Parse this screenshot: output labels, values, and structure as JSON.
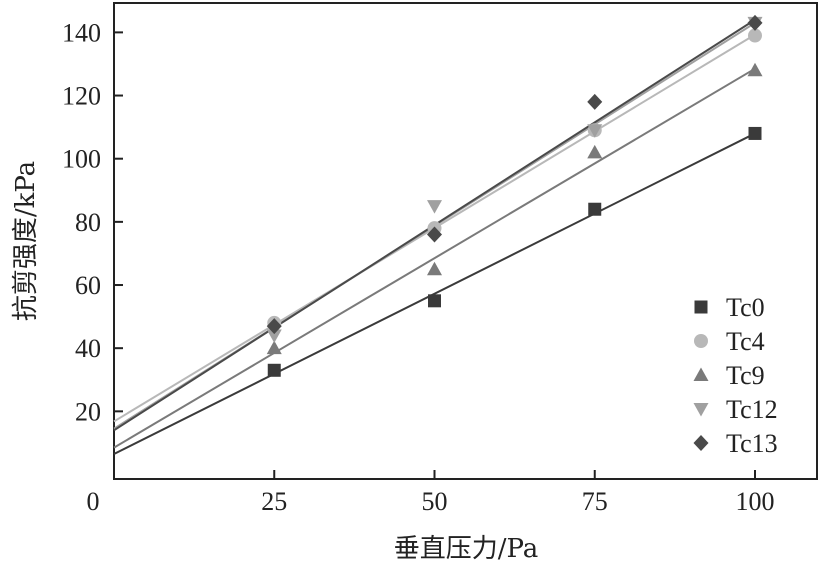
{
  "chart_data": {
    "type": "scatter",
    "xlabel": "垂直压力/Pa",
    "ylabel": "抗剪强度/kPa",
    "xlim": [
      0,
      108
    ],
    "ylim": [
      0,
      147
    ],
    "xticks": [
      0,
      25,
      50,
      75,
      100
    ],
    "yticks": [
      20,
      40,
      60,
      80,
      100,
      120,
      140
    ],
    "grid": false,
    "legend_position": "bottom-right",
    "series": [
      {
        "name": "Tc0",
        "marker": "square",
        "color": "#3a3a3a",
        "x": [
          25,
          50,
          75,
          100
        ],
        "y": [
          33,
          55,
          84,
          108
        ],
        "fit": {
          "intercept": 6.5,
          "slope": 1.015
        }
      },
      {
        "name": "Tc4",
        "marker": "circle",
        "color": "#b8b8b8",
        "x": [
          25,
          50,
          75,
          100
        ],
        "y": [
          48,
          78,
          109,
          139
        ],
        "fit": {
          "intercept": 16.8,
          "slope": 1.225
        }
      },
      {
        "name": "Tc9",
        "marker": "triangle-up",
        "color": "#7a7a7a",
        "x": [
          25,
          50,
          75,
          100
        ],
        "y": [
          40,
          65,
          102,
          128
        ],
        "fit": {
          "intercept": 8.5,
          "slope": 1.2
        }
      },
      {
        "name": "Tc12",
        "marker": "triangle-down",
        "color": "#a0a0a0",
        "x": [
          25,
          50,
          75,
          100
        ],
        "y": [
          44,
          85,
          109,
          143
        ],
        "fit": {
          "intercept": 14.5,
          "slope": 1.285
        }
      },
      {
        "name": "Tc13",
        "marker": "diamond",
        "color": "#4a4a4a",
        "x": [
          25,
          50,
          75,
          100
        ],
        "y": [
          47,
          76,
          118,
          143
        ],
        "fit": {
          "intercept": 14.0,
          "slope": 1.3
        }
      }
    ]
  }
}
